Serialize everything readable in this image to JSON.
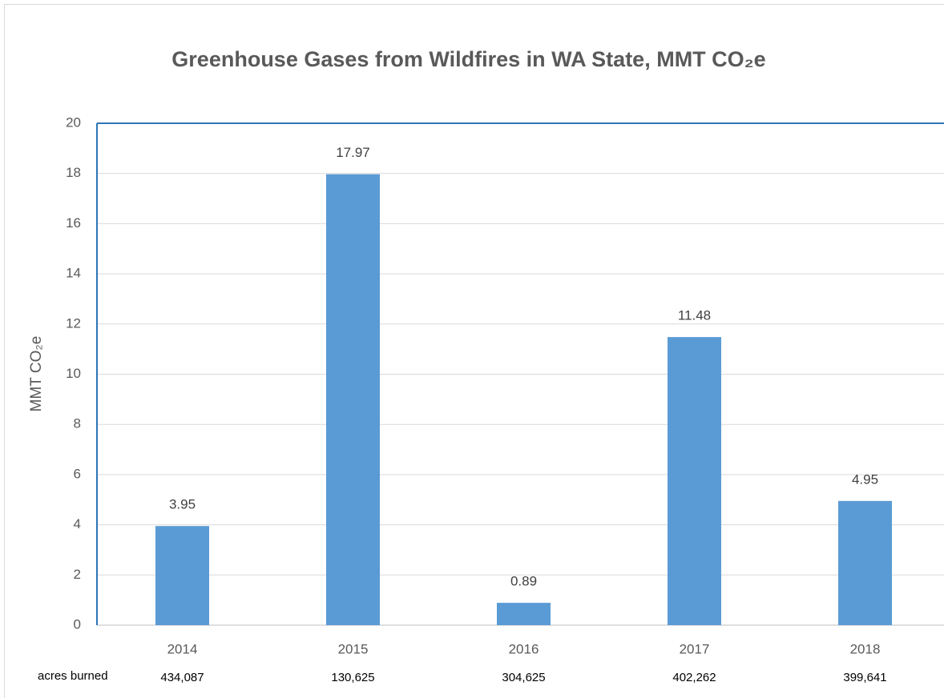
{
  "chart_data": {
    "type": "bar",
    "title": "Greenhouse Gases from Wildfires in WA State, MMT CO₂e",
    "y_label": "MMT CO₂e",
    "categories": [
      "2014",
      "2015",
      "2016",
      "2017",
      "2018"
    ],
    "values": [
      3.95,
      17.97,
      0.89,
      11.48,
      4.95
    ],
    "color": "#5b9bd5",
    "ylim": [
      0,
      20
    ],
    "yticks": [
      0,
      2,
      4,
      6,
      8,
      10,
      12,
      14,
      16,
      18,
      20
    ],
    "grid": true,
    "footer_row": {
      "label": "acres burned",
      "values": [
        "434,087",
        "130,625",
        "304,625",
        "402,262",
        "399,641"
      ]
    }
  }
}
